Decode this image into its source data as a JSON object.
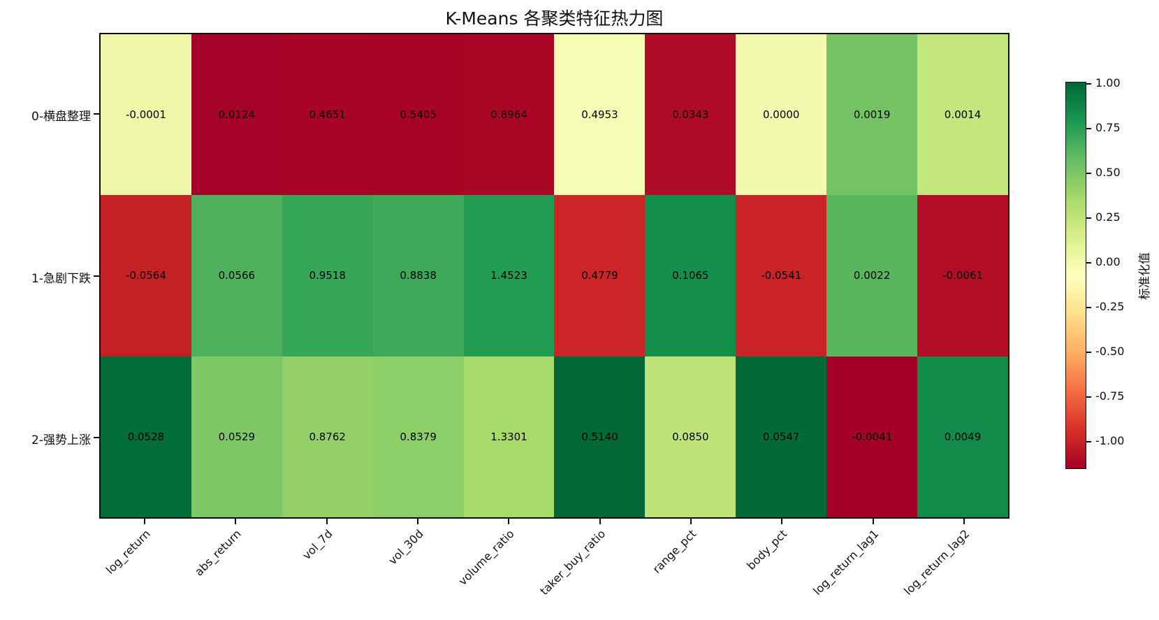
{
  "chart_data": {
    "type": "heatmap",
    "title": "K-Means 各聚类特征热力图",
    "rows": [
      "0-横盘整理",
      "1-急剧下跌",
      "2-强势上涨"
    ],
    "columns": [
      "log_return",
      "abs_return",
      "vol_7d",
      "vol_30d",
      "volume_ratio",
      "taker_buy_ratio",
      "range_pct",
      "body_pct",
      "log_return_lag1",
      "log_return_lag2"
    ],
    "values": [
      [
        -0.0001,
        0.0124,
        0.4651,
        0.5405,
        0.8964,
        0.4953,
        0.0343,
        0.0,
        0.0019,
        0.0014
      ],
      [
        -0.0564,
        0.0566,
        0.9518,
        0.8838,
        1.4523,
        0.4779,
        0.1065,
        -0.0541,
        0.0022,
        -0.0061
      ],
      [
        0.0528,
        0.0529,
        0.8762,
        0.8379,
        1.3301,
        0.514,
        0.085,
        0.0547,
        -0.0041,
        0.0049
      ]
    ],
    "value_decimals": 4,
    "cell_coloring": "per-column z-score (sample std), annotated with raw values",
    "colormap_name": "RdYlGn",
    "colormap": [
      "#a50026",
      "#d73027",
      "#f46d43",
      "#fdae61",
      "#fee08b",
      "#ffffbf",
      "#d9ef8b",
      "#a6d96a",
      "#66bd63",
      "#1a9850",
      "#006837"
    ],
    "annotation_text_color": "#000000",
    "x_tick_rotation": 45,
    "grid": false,
    "colorbar": {
      "label": "标准化值",
      "position": "right",
      "ticks": [
        1.0,
        0.75,
        0.5,
        0.25,
        0.0,
        -0.25,
        -0.5,
        -0.75,
        -1.0
      ],
      "tick_labels": [
        "1.00",
        "0.75",
        "0.50",
        "0.25",
        "0.00",
        "-0.25",
        "-0.50",
        "-0.75",
        "-1.00"
      ]
    }
  }
}
